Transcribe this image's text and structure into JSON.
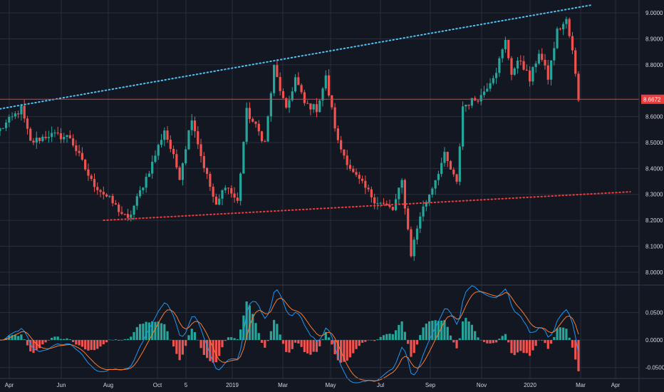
{
  "colors": {
    "background": "#131722",
    "grid": "#2a2e39",
    "up": "#26a69a",
    "down": "#ef5350",
    "macd_line": "#2196f3",
    "signal_line": "#ff7a2e",
    "resistance": "#4fc3f7",
    "support": "#ef3b3b",
    "price_line": "#ef3b3b",
    "axis_text": "#d1d4dc"
  },
  "chart_data": [
    {
      "type": "candlestick",
      "title": "",
      "x_ticks": [
        "Apr",
        "Jun",
        "Aug",
        "Oct",
        "5",
        "2019",
        "Mar",
        "May",
        "Jul",
        "Sep",
        "Nov",
        "2020",
        "Mar",
        "Apr"
      ],
      "y_ticks": [
        "9.0000",
        "8.9000",
        "8.8000",
        "8.6000",
        "8.5000",
        "8.4000",
        "8.3000",
        "8.2000",
        "8.1000",
        "8.0000"
      ],
      "ylim": [
        7.95,
        9.05
      ],
      "current_price_label": "8.6672",
      "current_price": 8.667,
      "grid": true,
      "trendlines": [
        {
          "style": "dotted",
          "role": "resistance",
          "points": [
            [
              0,
              8.63
            ],
            [
              194,
              9.03
            ]
          ]
        },
        {
          "style": "dotted",
          "role": "support",
          "points": [
            [
              34,
              8.2
            ],
            [
              207,
              8.31
            ]
          ]
        }
      ],
      "price_path": [
        [
          0,
          8.55
        ],
        [
          7,
          8.63
        ],
        [
          10,
          8.5
        ],
        [
          16,
          8.53
        ],
        [
          23,
          8.52
        ],
        [
          30,
          8.35
        ],
        [
          36,
          8.28
        ],
        [
          42,
          8.2
        ],
        [
          50,
          8.42
        ],
        [
          54,
          8.55
        ],
        [
          59,
          8.37
        ],
        [
          63,
          8.6
        ],
        [
          66,
          8.45
        ],
        [
          71,
          8.25
        ],
        [
          74,
          8.34
        ],
        [
          78,
          8.27
        ],
        [
          81,
          8.62
        ],
        [
          87,
          8.5
        ],
        [
          90,
          8.79
        ],
        [
          94,
          8.62
        ],
        [
          97,
          8.75
        ],
        [
          100,
          8.65
        ],
        [
          104,
          8.63
        ],
        [
          107,
          8.75
        ],
        [
          111,
          8.5
        ],
        [
          116,
          8.38
        ],
        [
          123,
          8.28
        ],
        [
          129,
          8.24
        ],
        [
          132,
          8.35
        ],
        [
          135,
          8.07
        ],
        [
          138,
          8.22
        ],
        [
          142,
          8.33
        ],
        [
          146,
          8.45
        ],
        [
          150,
          8.34
        ],
        [
          152,
          8.64
        ],
        [
          158,
          8.68
        ],
        [
          163,
          8.78
        ],
        [
          166,
          8.89
        ],
        [
          168,
          8.77
        ],
        [
          171,
          8.82
        ],
        [
          174,
          8.74
        ],
        [
          177,
          8.85
        ],
        [
          180,
          8.75
        ],
        [
          183,
          8.93
        ],
        [
          186,
          8.97
        ],
        [
          188,
          8.85
        ],
        [
          190,
          8.67
        ]
      ]
    },
    {
      "type": "histogram",
      "title": "",
      "y_ticks": [
        "0.0500",
        "0.0000",
        "-0.0500"
      ],
      "ylim": [
        -0.07,
        0.1
      ],
      "series": [
        {
          "role": "macd",
          "values": []
        },
        {
          "role": "signal",
          "values": []
        },
        {
          "role": "histogram",
          "values": []
        }
      ]
    }
  ]
}
